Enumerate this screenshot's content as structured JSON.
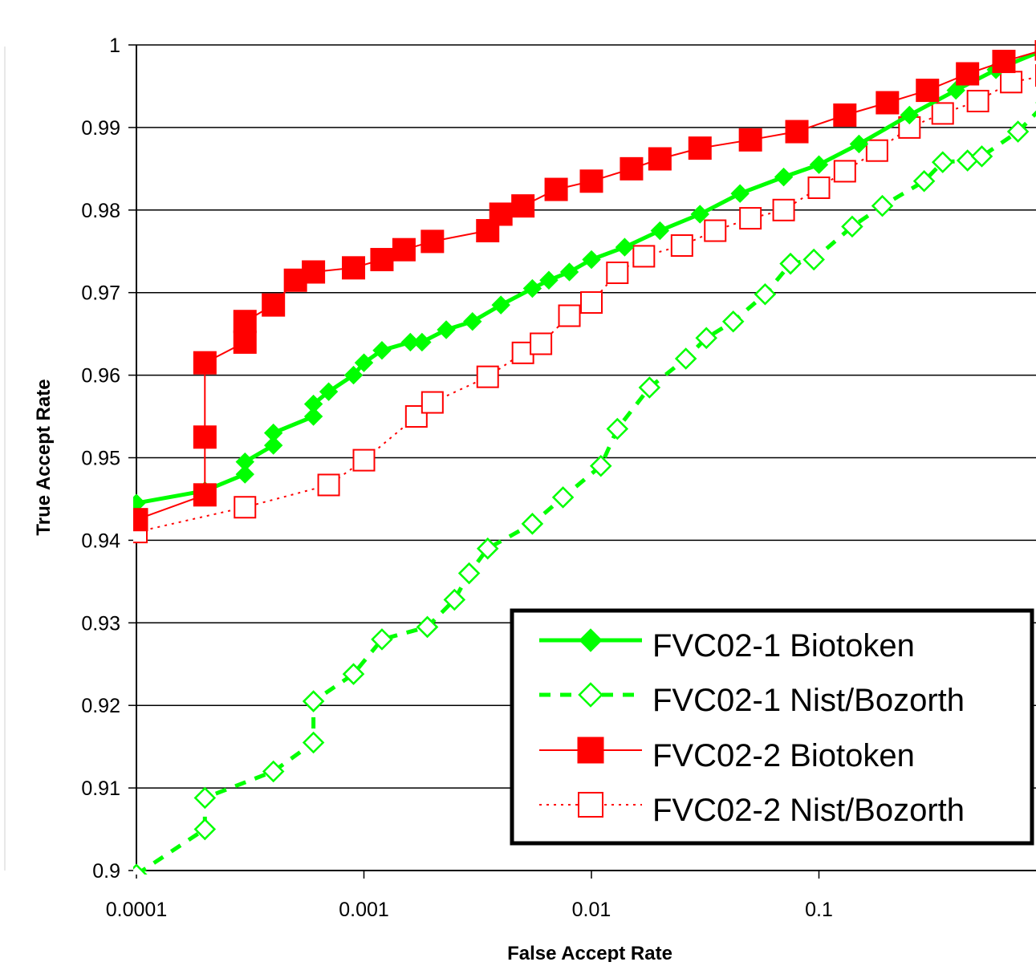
{
  "chart_data": {
    "type": "line",
    "title": "",
    "xlabel": "False Accept Rate",
    "ylabel": "True Accept Rate",
    "x_scale": "log",
    "xlim": [
      0.0001,
      1.0
    ],
    "ylim": [
      0.9,
      1.0
    ],
    "x_ticks": [
      0.0001,
      0.001,
      0.01,
      0.1
    ],
    "x_tick_labels": [
      "0.0001",
      "0.001",
      "0.01",
      "0.1"
    ],
    "y_ticks": [
      0.9,
      0.91,
      0.92,
      0.93,
      0.94,
      0.95,
      0.96,
      0.97,
      0.98,
      0.99,
      1.0
    ],
    "y_tick_labels": [
      "0.9",
      "0.91",
      "0.92",
      "0.93",
      "0.94",
      "0.95",
      "0.96",
      "0.97",
      "0.98",
      "0.99",
      "1"
    ],
    "grid": "horizontal",
    "legend_position": "bottom-right",
    "series": [
      {
        "name": "FVC02-1 Biotoken",
        "color": "#00ff00",
        "line_style": "solid",
        "marker": "filled-diamond",
        "points": [
          [
            0.0001,
            0.9445
          ],
          [
            0.0002,
            0.946
          ],
          [
            0.0003,
            0.948
          ],
          [
            0.0003,
            0.9495
          ],
          [
            0.0004,
            0.9515
          ],
          [
            0.0004,
            0.953
          ],
          [
            0.0006,
            0.955
          ],
          [
            0.0006,
            0.9565
          ],
          [
            0.0007,
            0.958
          ],
          [
            0.0009,
            0.96
          ],
          [
            0.001,
            0.9615
          ],
          [
            0.0012,
            0.963
          ],
          [
            0.0016,
            0.964
          ],
          [
            0.0018,
            0.964
          ],
          [
            0.0023,
            0.9655
          ],
          [
            0.003,
            0.9665
          ],
          [
            0.004,
            0.9685
          ],
          [
            0.0055,
            0.9705
          ],
          [
            0.0065,
            0.9715
          ],
          [
            0.008,
            0.9725
          ],
          [
            0.01,
            0.974
          ],
          [
            0.014,
            0.9755
          ],
          [
            0.02,
            0.9775
          ],
          [
            0.03,
            0.9795
          ],
          [
            0.045,
            0.982
          ],
          [
            0.07,
            0.984
          ],
          [
            0.1,
            0.9855
          ],
          [
            0.15,
            0.988
          ],
          [
            0.25,
            0.9915
          ],
          [
            0.4,
            0.9945
          ],
          [
            0.6,
            0.997
          ],
          [
            1.0,
            0.9995
          ]
        ]
      },
      {
        "name": "FVC02-1 Nist/Bozorth",
        "color": "#00ff00",
        "line_style": "dashed",
        "marker": "open-diamond",
        "points": [
          [
            0.0001,
            0.8995
          ],
          [
            0.0002,
            0.905
          ],
          [
            0.0002,
            0.9088
          ],
          [
            0.0004,
            0.912
          ],
          [
            0.0006,
            0.9155
          ],
          [
            0.0006,
            0.9205
          ],
          [
            0.0009,
            0.9238
          ],
          [
            0.0012,
            0.928
          ],
          [
            0.0019,
            0.9295
          ],
          [
            0.0025,
            0.9328
          ],
          [
            0.0029,
            0.936
          ],
          [
            0.0035,
            0.939
          ],
          [
            0.0055,
            0.942
          ],
          [
            0.0075,
            0.9452
          ],
          [
            0.011,
            0.949
          ],
          [
            0.013,
            0.9535
          ],
          [
            0.018,
            0.9585
          ],
          [
            0.026,
            0.962
          ],
          [
            0.032,
            0.9645
          ],
          [
            0.042,
            0.9665
          ],
          [
            0.058,
            0.9698
          ],
          [
            0.075,
            0.9735
          ],
          [
            0.095,
            0.974
          ],
          [
            0.14,
            0.978
          ],
          [
            0.19,
            0.9805
          ],
          [
            0.29,
            0.9835
          ],
          [
            0.35,
            0.9858
          ],
          [
            0.45,
            0.986
          ],
          [
            0.52,
            0.9865
          ],
          [
            0.75,
            0.9895
          ],
          [
            1.0,
            0.993
          ]
        ]
      },
      {
        "name": "FVC02-2 Biotoken",
        "color": "#ff0000",
        "line_style": "solid",
        "marker": "filled-square",
        "points": [
          [
            0.0001,
            0.9425
          ],
          [
            0.0002,
            0.9455
          ],
          [
            0.0002,
            0.9525
          ],
          [
            0.0002,
            0.9615
          ],
          [
            0.0003,
            0.964
          ],
          [
            0.0003,
            0.9665
          ],
          [
            0.0004,
            0.9685
          ],
          [
            0.0005,
            0.9715
          ],
          [
            0.0006,
            0.9725
          ],
          [
            0.0009,
            0.973
          ],
          [
            0.0012,
            0.974
          ],
          [
            0.0015,
            0.9752
          ],
          [
            0.002,
            0.9762
          ],
          [
            0.0035,
            0.9775
          ],
          [
            0.004,
            0.9795
          ],
          [
            0.005,
            0.9805
          ],
          [
            0.007,
            0.9825
          ],
          [
            0.01,
            0.9835
          ],
          [
            0.015,
            0.985
          ],
          [
            0.02,
            0.9862
          ],
          [
            0.03,
            0.9875
          ],
          [
            0.05,
            0.9885
          ],
          [
            0.08,
            0.9895
          ],
          [
            0.13,
            0.9915
          ],
          [
            0.2,
            0.993
          ],
          [
            0.3,
            0.9945
          ],
          [
            0.45,
            0.9965
          ],
          [
            0.65,
            0.998
          ],
          [
            1.0,
            0.9995
          ]
        ]
      },
      {
        "name": "FVC02-2 Nist/Bozorth",
        "color": "#ff0000",
        "line_style": "dotted",
        "marker": "open-square",
        "points": [
          [
            0.0001,
            0.941
          ],
          [
            0.0003,
            0.944
          ],
          [
            0.0007,
            0.9467
          ],
          [
            0.001,
            0.9497
          ],
          [
            0.0017,
            0.955
          ],
          [
            0.002,
            0.9567
          ],
          [
            0.0035,
            0.9598
          ],
          [
            0.005,
            0.9627
          ],
          [
            0.006,
            0.9638
          ],
          [
            0.008,
            0.9672
          ],
          [
            0.01,
            0.9688
          ],
          [
            0.013,
            0.9724
          ],
          [
            0.017,
            0.9744
          ],
          [
            0.025,
            0.9757
          ],
          [
            0.035,
            0.9775
          ],
          [
            0.05,
            0.979
          ],
          [
            0.07,
            0.98
          ],
          [
            0.1,
            0.9827
          ],
          [
            0.13,
            0.9847
          ],
          [
            0.18,
            0.9872
          ],
          [
            0.25,
            0.99
          ],
          [
            0.35,
            0.9917
          ],
          [
            0.5,
            0.9932
          ],
          [
            0.7,
            0.9955
          ],
          [
            1.0,
            0.9963
          ]
        ]
      }
    ]
  }
}
